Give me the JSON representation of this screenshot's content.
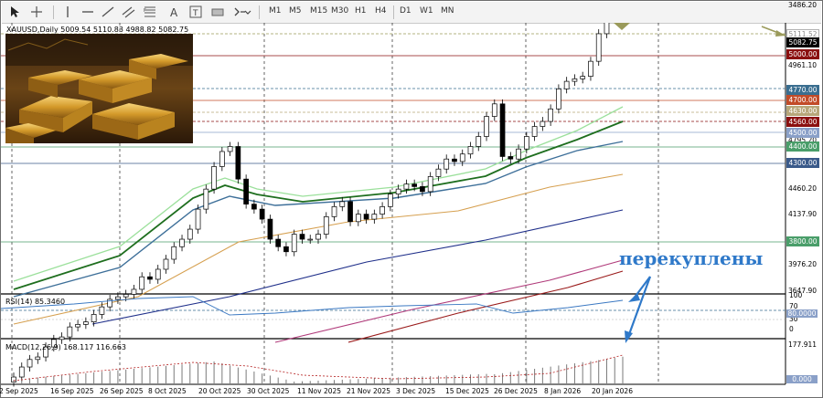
{
  "toolbar": {
    "timeframes": [
      "M1",
      "M5",
      "M15",
      "M30",
      "H1",
      "H4",
      "D1",
      "W1",
      "MN"
    ]
  },
  "chart": {
    "symbol_info": "XAUUSD,Daily  5009.54 5110.83 4988.82 5082.75",
    "rsi_label": "RSI(14) 85.3460",
    "macd_label": "MACD(12,26,9) 168.117 116.663",
    "annotation": "перекуплены",
    "price_ticks": [
      "4961.10",
      "4795.20",
      "4460.20",
      "4137.90",
      "3976.20",
      "3647.90",
      "3486.20"
    ],
    "price_boxes": [
      {
        "text": "5111.52",
        "bg": "#ffffff",
        "fg": "#8a8a8a",
        "border": "#b0b0b0"
      },
      {
        "text": "5082.75",
        "bg": "#000000",
        "fg": "#ffffff",
        "border": "#000000"
      },
      {
        "text": "5000.00",
        "bg": "#8b1010",
        "fg": "#ffffff",
        "border": "#8b1010"
      },
      {
        "text": "4770.00",
        "bg": "#3a6e90",
        "fg": "#ffffff",
        "border": "#3a6e90"
      },
      {
        "text": "4700.00",
        "bg": "#c24b28",
        "fg": "#ffffff",
        "border": "#c24b28"
      },
      {
        "text": "4630.00",
        "bg": "#b7a77a",
        "fg": "#ffffff",
        "border": "#b7a77a"
      },
      {
        "text": "4560.00",
        "bg": "#8b1010",
        "fg": "#ffffff",
        "border": "#8b1010"
      },
      {
        "text": "4500.00",
        "bg": "#8aa0c8",
        "fg": "#ffffff",
        "border": "#8aa0c8"
      },
      {
        "text": "4400.00",
        "bg": "#4a9e6a",
        "fg": "#ffffff",
        "border": "#4a9e6a"
      },
      {
        "text": "4300.00",
        "bg": "#3a5a8a",
        "fg": "#ffffff",
        "border": "#3a5a8a"
      },
      {
        "text": "3800.00",
        "bg": "#4a9e6a",
        "fg": "#ffffff",
        "border": "#4a9e6a"
      }
    ],
    "rsi_ticks": [
      "100",
      "70",
      "30",
      "0"
    ],
    "rsi_box": {
      "text": "80.0000",
      "bg": "#8aa0c8",
      "fg": "#ffffff"
    },
    "macd_tick": "177.911",
    "macd_box": {
      "text": "0.000",
      "bg": "#8aa0c8",
      "fg": "#ffffff"
    },
    "dates": [
      "2 Sep 2025",
      "16 Sep 2025",
      "26 Sep 2025",
      "8 Oct 2025",
      "20 Oct 2025",
      "30 Oct 2025",
      "11 Nov 2025",
      "21 Nov 2025",
      "3 Dec 2025",
      "15 Dec 2025",
      "26 Dec 2025",
      "8 Jan 2026",
      "20 Jan 2026"
    ]
  }
}
